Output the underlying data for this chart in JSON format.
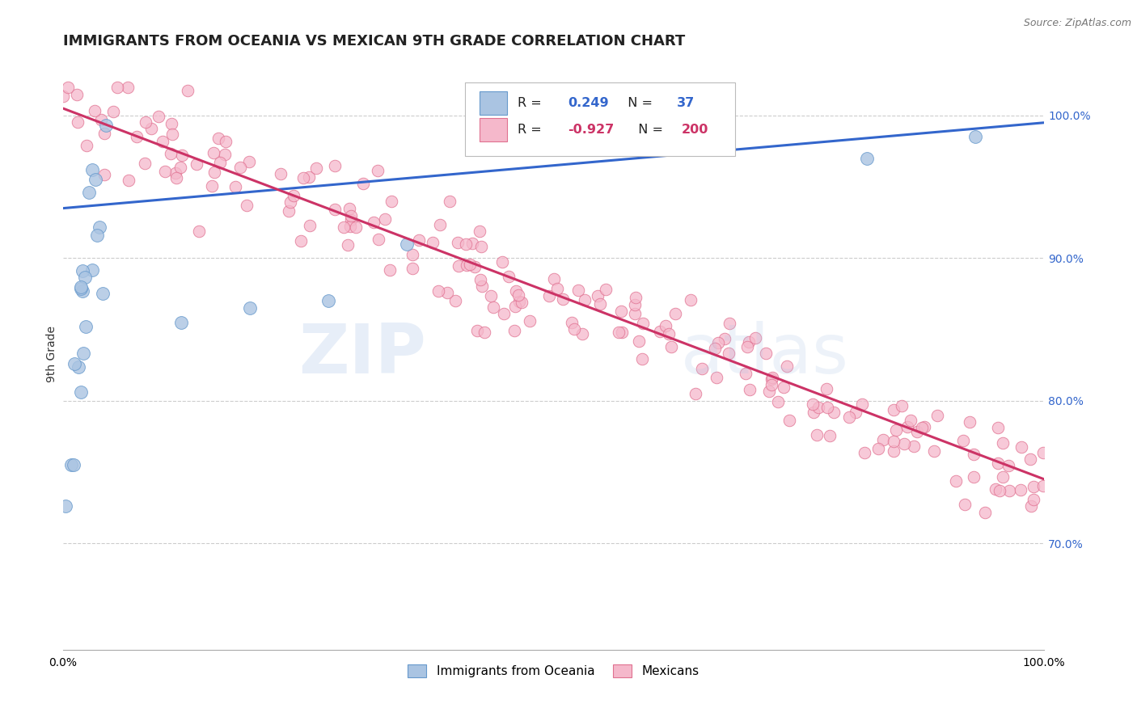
{
  "title": "IMMIGRANTS FROM OCEANIA VS MEXICAN 9TH GRADE CORRELATION CHART",
  "source": "Source: ZipAtlas.com",
  "ylabel": "9th Grade",
  "xlim": [
    0.0,
    1.0
  ],
  "ylim": [
    0.625,
    1.04
  ],
  "right_yticks": [
    0.7,
    0.8,
    0.9,
    1.0
  ],
  "right_ytick_labels": [
    "70.0%",
    "80.0%",
    "90.0%",
    "100.0%"
  ],
  "blue_R": 0.249,
  "blue_N": 37,
  "red_R": -0.927,
  "red_N": 200,
  "blue_color": "#aac4e2",
  "blue_edge": "#6699cc",
  "pink_color": "#f5b8cb",
  "pink_edge": "#e07090",
  "blue_line_color": "#3366cc",
  "red_line_color": "#cc3366",
  "watermark_zip": "ZIP",
  "watermark_atlas": "atlas",
  "legend_blue_label": "Immigrants from Oceania",
  "legend_pink_label": "Mexicans",
  "background_color": "#ffffff",
  "grid_color": "#cccccc",
  "title_fontsize": 13,
  "label_fontsize": 10,
  "source_fontsize": 9,
  "blue_line_start_y": 0.935,
  "blue_line_end_y": 0.995,
  "red_line_start_y": 1.005,
  "red_line_end_y": 0.745
}
